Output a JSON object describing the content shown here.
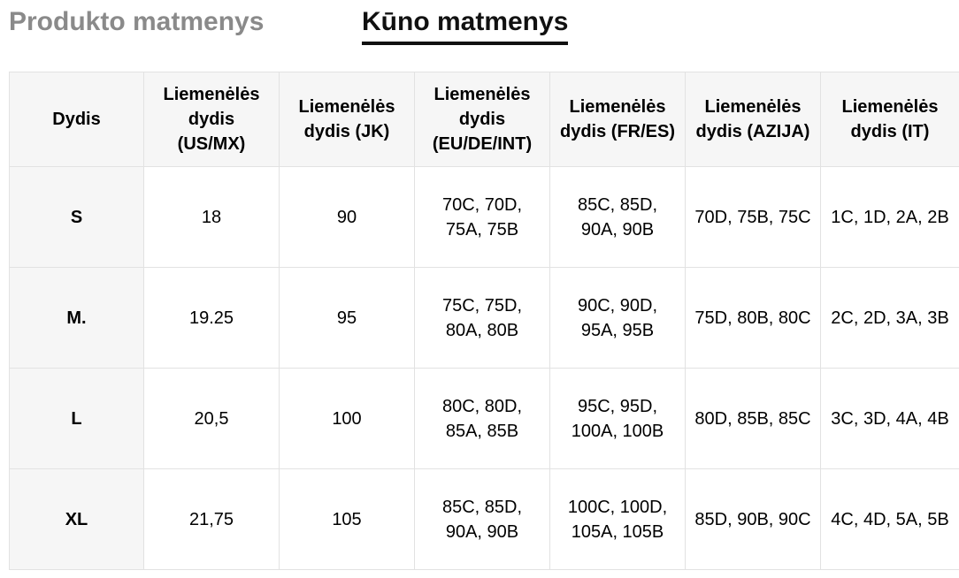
{
  "tabs": {
    "product": "Produkto matmenys",
    "body": "Kūno matmenys"
  },
  "table": {
    "headers": [
      "Dydis",
      "Liemenėlės dydis (US/MX)",
      "Liemenėlės dydis (JK)",
      "Liemenėlės dydis (EU/DE/INT)",
      "Liemenėlės dydis (FR/ES)",
      "Liemenėlės dydis (AZIJA)",
      "Liemenėlės dydis (IT)"
    ],
    "rows": [
      [
        "S",
        "18",
        "90",
        "70C, 70D, 75A, 75B",
        "85C, 85D, 90A, 90B",
        "70D, 75B, 75C",
        "1C, 1D, 2A, 2B"
      ],
      [
        "M.",
        "19.25",
        "95",
        "75C, 75D, 80A, 80B",
        "90C, 90D, 95A, 95B",
        "75D, 80B, 80C",
        "2C, 2D, 3A, 3B"
      ],
      [
        "L",
        "20,5",
        "100",
        "80C, 80D, 85A, 85B",
        "95C, 95D, 100A, 100B",
        "80D, 85B, 85C",
        "3C, 3D, 4A, 4B"
      ],
      [
        "XL",
        "21,75",
        "105",
        "85C, 85D, 90A, 90B",
        "100C, 100D, 105A, 105B",
        "85D, 90B, 90C",
        "4C, 4D, 5A, 5B"
      ]
    ]
  }
}
